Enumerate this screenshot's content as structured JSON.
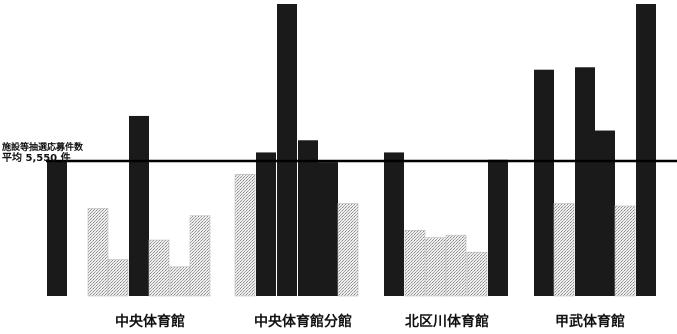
{
  "chart_data": {
    "type": "bar",
    "title": "",
    "xlabel": "",
    "ylabel": "",
    "average": {
      "label_line1": "施設等抽選応募件数",
      "label_line2": "平均 5,550 件",
      "value": 5550
    },
    "ylim": [
      0,
      12000
    ],
    "groups": [
      {
        "name": "中央体育館",
        "values": [
          5550,
          3600,
          1500,
          7400,
          2300,
          1200,
          3300
        ]
      },
      {
        "name": "中央体育館分館",
        "values": [
          5000,
          5900,
          12000,
          6400,
          5500,
          3800
        ]
      },
      {
        "name": "北区川体育館",
        "values": [
          5900,
          2700,
          2400,
          2500,
          1800,
          5600
        ]
      },
      {
        "name": "甲武体育館",
        "values": [
          9300,
          3800,
          9400,
          6800,
          3700,
          12000
        ]
      }
    ]
  },
  "colors": {
    "dark": "#1a1a1a",
    "light": "#e0e0e0",
    "average_line": "#000000"
  }
}
